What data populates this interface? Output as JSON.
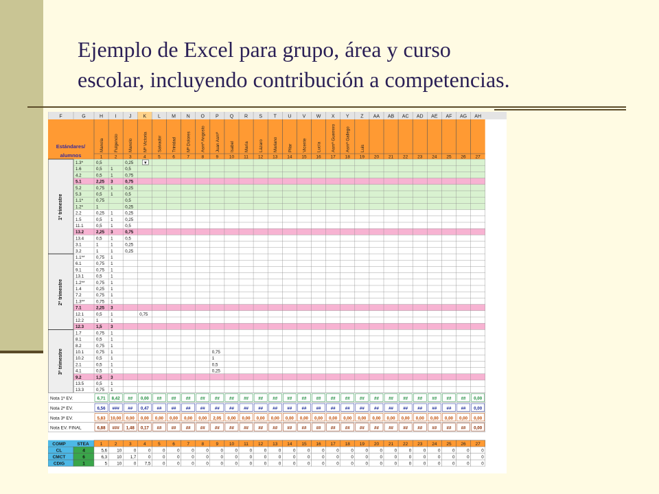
{
  "slide": {
    "title_line1": "Ejemplo de Excel para grupo, área y curso",
    "title_line2": "escolar, incluyendo contribución a competencias."
  },
  "colors": {
    "orange": "#ff9a33",
    "green": "#d9f2d0",
    "pink": "#f7b3d2",
    "blue": "#4db8e6",
    "sel": "#ffd28a",
    "grid": "#8a8a8a"
  },
  "sheet": {
    "column_letters": [
      "F",
      "G",
      "H",
      "I",
      "J",
      "K",
      "L",
      "M",
      "N",
      "O",
      "P",
      "Q",
      "R",
      "S",
      "T",
      "U",
      "V",
      "W",
      "X",
      "Y",
      "Z",
      "AA",
      "AB",
      "AC",
      "AD",
      "AE",
      "AF",
      "AG",
      "AH"
    ],
    "selected_column": "K",
    "corner_label": "Estándares/ alumnos",
    "students": [
      "Manola",
      "Fulgencio",
      "Manolo",
      "Mª Victoria",
      "Salvador",
      "Trinidad",
      "Mª Dolores",
      "Asmª Angosto",
      "Juan Asmª",
      "Isabel",
      "María",
      "Lázaro",
      "Mariano",
      "Pilar",
      "Vicente",
      "Lucía",
      "Asmª Guerrero",
      "Asmª Gallego",
      "Luis",
      "",
      "",
      "",
      "",
      "",
      "",
      "",
      ""
    ],
    "student_numbers": [
      "1",
      "2",
      "3",
      "4",
      "5",
      "6",
      "7",
      "8",
      "9",
      "10",
      "11",
      "12",
      "13",
      "14",
      "15",
      "16",
      "17",
      "18",
      "19",
      "20",
      "21",
      "22",
      "23",
      "24",
      "25",
      "26",
      "27"
    ],
    "trimesters": [
      "1º trimestre",
      "2º trimestre",
      "3º trimestre"
    ],
    "rows": [
      {
        "std": "1.3*",
        "t": "g",
        "v": [
          "0,5",
          "",
          "0,25"
        ]
      },
      {
        "std": "1.6",
        "t": "g",
        "v": [
          "0,5",
          "1",
          "0,5"
        ]
      },
      {
        "std": "4.2",
        "t": "g",
        "v": [
          "0,5",
          "1",
          "0,75"
        ]
      },
      {
        "std": "5.1",
        "t": "p",
        "v": [
          "2,25",
          "3",
          "0,75"
        ]
      },
      {
        "std": "5.2",
        "t": "g",
        "v": [
          "0,75",
          "1",
          "0,25"
        ]
      },
      {
        "std": "5.3",
        "t": "g",
        "v": [
          "0,5",
          "1",
          "0,5"
        ]
      },
      {
        "std": "1.1*",
        "t": "g",
        "v": [
          "0,75",
          "",
          "0,5"
        ]
      },
      {
        "std": "1.2*",
        "t": "g",
        "v": [
          "1",
          "",
          "0,25"
        ]
      },
      {
        "std": "2.2",
        "t": "w",
        "v": [
          "0,25",
          "1",
          "0,25"
        ]
      },
      {
        "std": "1.5",
        "t": "w",
        "v": [
          "0,5",
          "1",
          "0,25"
        ]
      },
      {
        "std": "11.1",
        "t": "w",
        "v": [
          "0,5",
          "1",
          "0,5"
        ]
      },
      {
        "std": "13.2",
        "t": "p",
        "v": [
          "2,25",
          "3",
          "0,75"
        ]
      },
      {
        "std": "13.4",
        "t": "w",
        "v": [
          "0,5",
          "1",
          "0,5"
        ]
      },
      {
        "std": "3.1",
        "t": "w",
        "v": [
          "1",
          "1",
          "0,25"
        ]
      },
      {
        "std": "3.2",
        "t": "w",
        "v": [
          "1",
          "1",
          "0,25"
        ]
      },
      {
        "std": "1.1**",
        "t": "w",
        "v": [
          "0,75",
          "1",
          ""
        ]
      },
      {
        "std": "6.1",
        "t": "w",
        "v": [
          "0,75",
          "1",
          ""
        ]
      },
      {
        "std": "9.1",
        "t": "w",
        "v": [
          "0,75",
          "1",
          ""
        ]
      },
      {
        "std": "13.1",
        "t": "w",
        "v": [
          "0,5",
          "1",
          ""
        ]
      },
      {
        "std": "1.2**",
        "t": "w",
        "v": [
          "0,75",
          "1",
          ""
        ]
      },
      {
        "std": "1.4",
        "t": "w",
        "v": [
          "0,25",
          "1",
          ""
        ]
      },
      {
        "std": "7.2",
        "t": "w",
        "v": [
          "0,75",
          "1",
          ""
        ]
      },
      {
        "std": "1.3**",
        "t": "w",
        "v": [
          "0,75",
          "1",
          ""
        ]
      },
      {
        "std": "7.1",
        "t": "p",
        "v": [
          "2,25",
          "3",
          ""
        ]
      },
      {
        "std": "12.1",
        "t": "w",
        "v": [
          "0,5",
          "1",
          "",
          "0,75"
        ]
      },
      {
        "std": "12.2",
        "t": "w",
        "v": [
          "1",
          "1",
          ""
        ]
      },
      {
        "std": "12.3",
        "t": "p",
        "v": [
          "1,5",
          "3",
          ""
        ]
      },
      {
        "std": "1.7",
        "t": "w",
        "v": [
          "0,75",
          "1",
          ""
        ]
      },
      {
        "std": "8.1",
        "t": "w",
        "v": [
          "0,5",
          "1",
          ""
        ]
      },
      {
        "std": "8.2",
        "t": "w",
        "v": [
          "0,75",
          "1",
          ""
        ]
      },
      {
        "std": "10.1",
        "t": "w",
        "v": [
          "0,75",
          "1",
          "",
          "",
          "",
          "",
          "",
          "",
          "0,75"
        ]
      },
      {
        "std": "10.2",
        "t": "w",
        "v": [
          "0,5",
          "1",
          "",
          "",
          "",
          "",
          "",
          "",
          "1"
        ]
      },
      {
        "std": "2.1",
        "t": "w",
        "v": [
          "0,5",
          "1",
          "",
          "",
          "",
          "",
          "",
          "",
          "0,5"
        ]
      },
      {
        "std": "4.1",
        "t": "w",
        "v": [
          "0,5",
          "1",
          "",
          "",
          "",
          "",
          "",
          "",
          "0,25"
        ]
      },
      {
        "std": "9.2",
        "t": "p",
        "v": [
          "1,5",
          "3",
          ""
        ]
      },
      {
        "std": "13.5",
        "t": "w",
        "v": [
          "0,5",
          "1",
          ""
        ]
      },
      {
        "std": "13.3",
        "t": "w",
        "v": [
          "0,75",
          "1",
          ""
        ]
      }
    ],
    "notes": [
      {
        "label": "Nota 1ª EV.",
        "values": [
          "6,71",
          "8,42",
          "##",
          "0,00",
          "##",
          "##",
          "##",
          "##",
          "##",
          "##",
          "##",
          "##",
          "##",
          "##",
          "##",
          "##",
          "##",
          "##",
          "##",
          "##",
          "##",
          "##",
          "##",
          "##",
          "##",
          "##",
          "0,00"
        ]
      },
      {
        "label": "Nota 2ª EV.",
        "values": [
          "6,56",
          "###",
          "##",
          "0,47",
          "##",
          "##",
          "##",
          "##",
          "##",
          "##",
          "##",
          "##",
          "##",
          "##",
          "##",
          "##",
          "##",
          "##",
          "##",
          "##",
          "##",
          "##",
          "##",
          "##",
          "##",
          "##",
          "0,00"
        ]
      },
      {
        "label": "Nota 3ª EV.",
        "values": [
          "5,83",
          "10,00",
          "0,00",
          "0,00",
          "0,00",
          "0,00",
          "0,00",
          "0,00",
          "2,05",
          "0,00",
          "0,00",
          "0,00",
          "0,00",
          "0,00",
          "0,00",
          "0,00",
          "0,00",
          "0,00",
          "0,00",
          "0,00",
          "0,00",
          "0,00",
          "0,00",
          "0,00",
          "0,00",
          "0,00",
          "0,00"
        ]
      },
      {
        "label": "Nota EV. FINAL",
        "values": [
          "6,88",
          "###",
          "1,48",
          "0,17",
          "##",
          "##",
          "##",
          "##",
          "##",
          "##",
          "##",
          "##",
          "##",
          "##",
          "##",
          "##",
          "##",
          "##",
          "##",
          "##",
          "##",
          "##",
          "##",
          "##",
          "##",
          "##",
          "0,00"
        ]
      }
    ],
    "comp_header": [
      "COMP",
      "STEA"
    ],
    "comp_numbers": [
      "1",
      "2",
      "3",
      "4",
      "5",
      "6",
      "7",
      "8",
      "9",
      "10",
      "11",
      "12",
      "13",
      "14",
      "15",
      "16",
      "17",
      "18",
      "19",
      "20",
      "21",
      "22",
      "23",
      "24",
      "25",
      "26",
      "27"
    ],
    "comp_rows": [
      {
        "name": "CL",
        "stea": "4",
        "values": [
          "5,6",
          "10",
          "0",
          "0",
          "0",
          "0",
          "0",
          "0",
          "0",
          "0",
          "0",
          "0",
          "0",
          "0",
          "0",
          "0",
          "0",
          "0",
          "0",
          "0",
          "0",
          "0",
          "0",
          "0",
          "0",
          "0",
          "0"
        ]
      },
      {
        "name": "CMCT",
        "stea": "6",
        "values": [
          "6,3",
          "10",
          "1,7",
          "0",
          "0",
          "0",
          "0",
          "0",
          "0",
          "0",
          "0",
          "0",
          "0",
          "0",
          "0",
          "0",
          "0",
          "0",
          "0",
          "0",
          "0",
          "0",
          "0",
          "0",
          "0",
          "0",
          "0"
        ]
      },
      {
        "name": "CDIG",
        "stea": "1",
        "values": [
          "5",
          "10",
          "0",
          "7,5",
          "0",
          "0",
          "0",
          "0",
          "0",
          "0",
          "0",
          "0",
          "0",
          "0",
          "0",
          "0",
          "0",
          "0",
          "0",
          "0",
          "0",
          "0",
          "0",
          "0",
          "0",
          "0",
          "0"
        ]
      }
    ]
  }
}
